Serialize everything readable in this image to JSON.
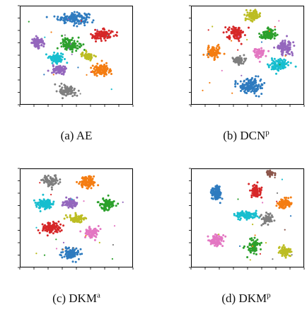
{
  "palette": {
    "blue": "#2e7bbf",
    "orange": "#f47d12",
    "green": "#2ca02c",
    "red": "#d62728",
    "purple": "#9467bd",
    "brown": "#8c564b",
    "pink": "#e377c2",
    "gray": "#7f7f7f",
    "olive": "#bcbd22",
    "cyan": "#17becf"
  },
  "chart_data": [
    {
      "type": "scatter",
      "caption": {
        "label": "(a) AE",
        "sup": ""
      },
      "xlim": [
        -100,
        100
      ],
      "ylim": [
        -100,
        100
      ],
      "clusters": [
        {
          "color": "blue",
          "center": [
            -5,
            75
          ],
          "spread": [
            30,
            12
          ],
          "n": 160
        },
        {
          "color": "purple",
          "center": [
            -68,
            25
          ],
          "spread": [
            12,
            10
          ],
          "n": 90
        },
        {
          "color": "green",
          "center": [
            -10,
            22
          ],
          "spread": [
            18,
            14
          ],
          "n": 120
        },
        {
          "color": "red",
          "center": [
            45,
            40
          ],
          "spread": [
            22,
            12
          ],
          "n": 110
        },
        {
          "color": "cyan",
          "center": [
            -35,
            -5
          ],
          "spread": [
            14,
            11
          ],
          "n": 90
        },
        {
          "color": "olive",
          "center": [
            20,
            -2
          ],
          "spread": [
            12,
            9
          ],
          "n": 60
        },
        {
          "color": "orange",
          "center": [
            45,
            -30
          ],
          "spread": [
            20,
            13
          ],
          "n": 110
        },
        {
          "color": "purple",
          "center": [
            -30,
            -30
          ],
          "spread": [
            14,
            10
          ],
          "n": 90
        },
        {
          "color": "gray",
          "center": [
            -15,
            -72
          ],
          "spread": [
            16,
            11
          ],
          "n": 90
        }
      ]
    },
    {
      "type": "scatter",
      "caption": {
        "label": "(b) DCN",
        "sup": "p"
      },
      "xlim": [
        -100,
        100
      ],
      "ylim": [
        -100,
        100
      ],
      "clusters": [
        {
          "color": "olive",
          "center": [
            10,
            80
          ],
          "spread": [
            14,
            11
          ],
          "n": 90
        },
        {
          "color": "red",
          "center": [
            -20,
            45
          ],
          "spread": [
            16,
            14
          ],
          "n": 110
        },
        {
          "color": "green",
          "center": [
            35,
            42
          ],
          "spread": [
            16,
            13
          ],
          "n": 100
        },
        {
          "color": "purple",
          "center": [
            65,
            15
          ],
          "spread": [
            16,
            16
          ],
          "n": 100
        },
        {
          "color": "orange",
          "center": [
            -60,
            5
          ],
          "spread": [
            14,
            14
          ],
          "n": 100
        },
        {
          "color": "pink",
          "center": [
            20,
            5
          ],
          "spread": [
            10,
            11
          ],
          "n": 70
        },
        {
          "color": "cyan",
          "center": [
            55,
            -20
          ],
          "spread": [
            18,
            12
          ],
          "n": 100
        },
        {
          "color": "gray",
          "center": [
            -15,
            -10
          ],
          "spread": [
            12,
            9
          ],
          "n": 60
        },
        {
          "color": "blue",
          "center": [
            5,
            -62
          ],
          "spread": [
            24,
            16
          ],
          "n": 150
        }
      ]
    },
    {
      "type": "scatter",
      "caption": {
        "label": "(c) DKM",
        "sup": "a"
      },
      "xlim": [
        -100,
        100
      ],
      "ylim": [
        -100,
        100
      ],
      "clusters": [
        {
          "color": "gray",
          "center": [
            -45,
            75
          ],
          "spread": [
            16,
            12
          ],
          "n": 90
        },
        {
          "color": "orange",
          "center": [
            20,
            72
          ],
          "spread": [
            16,
            13
          ],
          "n": 100
        },
        {
          "color": "cyan",
          "center": [
            -55,
            28
          ],
          "spread": [
            16,
            12
          ],
          "n": 100
        },
        {
          "color": "purple",
          "center": [
            -10,
            30
          ],
          "spread": [
            14,
            10
          ],
          "n": 80
        },
        {
          "color": "green",
          "center": [
            55,
            28
          ],
          "spread": [
            14,
            12
          ],
          "n": 90
        },
        {
          "color": "olive",
          "center": [
            0,
            -2
          ],
          "spread": [
            16,
            8
          ],
          "n": 70
        },
        {
          "color": "red",
          "center": [
            -45,
            -20
          ],
          "spread": [
            20,
            12
          ],
          "n": 110
        },
        {
          "color": "pink",
          "center": [
            25,
            -30
          ],
          "spread": [
            14,
            11
          ],
          "n": 80
        },
        {
          "color": "blue",
          "center": [
            -10,
            -72
          ],
          "spread": [
            16,
            14
          ],
          "n": 100
        }
      ]
    },
    {
      "type": "scatter",
      "caption": {
        "label": "(d) DKM",
        "sup": "p"
      },
      "xlim": [
        -100,
        100
      ],
      "ylim": [
        -100,
        100
      ],
      "clusters": [
        {
          "color": "brown",
          "center": [
            40,
            90
          ],
          "spread": [
            8,
            6
          ],
          "n": 40
        },
        {
          "color": "blue",
          "center": [
            -55,
            50
          ],
          "spread": [
            10,
            18
          ],
          "n": 100
        },
        {
          "color": "red",
          "center": [
            15,
            55
          ],
          "spread": [
            10,
            14
          ],
          "n": 90
        },
        {
          "color": "orange",
          "center": [
            65,
            30
          ],
          "spread": [
            14,
            12
          ],
          "n": 90
        },
        {
          "color": "cyan",
          "center": [
            -5,
            5
          ],
          "spread": [
            22,
            9
          ],
          "n": 110
        },
        {
          "color": "gray",
          "center": [
            35,
            -2
          ],
          "spread": [
            12,
            12
          ],
          "n": 70
        },
        {
          "color": "pink",
          "center": [
            -55,
            -45
          ],
          "spread": [
            14,
            12
          ],
          "n": 90
        },
        {
          "color": "green",
          "center": [
            10,
            -58
          ],
          "spread": [
            12,
            15
          ],
          "n": 90
        },
        {
          "color": "olive",
          "center": [
            65,
            -68
          ],
          "spread": [
            12,
            10
          ],
          "n": 80
        }
      ]
    }
  ]
}
